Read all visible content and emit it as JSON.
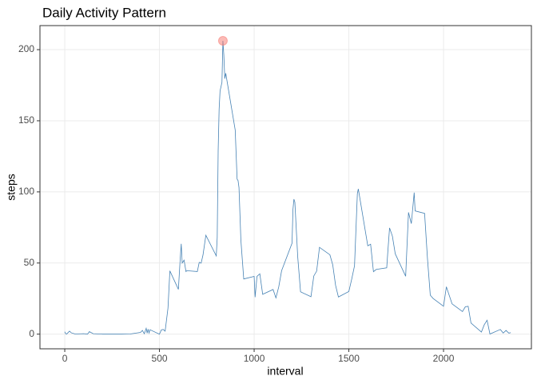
{
  "chart_data": {
    "type": "line",
    "title": "Daily Activity Pattern",
    "xlabel": "interval",
    "ylabel": "steps",
    "x": [
      0,
      5,
      10,
      25,
      35,
      55,
      100,
      120,
      130,
      150,
      200,
      245,
      300,
      345,
      400,
      410,
      420,
      430,
      435,
      440,
      445,
      450,
      500,
      510,
      520,
      530,
      545,
      555,
      600,
      610,
      615,
      620,
      630,
      640,
      645,
      700,
      710,
      720,
      730,
      745,
      800,
      805,
      810,
      815,
      820,
      830,
      835,
      840,
      845,
      850,
      900,
      910,
      915,
      920,
      930,
      945,
      1000,
      1005,
      1015,
      1030,
      1045,
      1100,
      1115,
      1130,
      1145,
      1200,
      1205,
      1210,
      1215,
      1230,
      1245,
      1300,
      1315,
      1330,
      1345,
      1400,
      1415,
      1430,
      1445,
      1500,
      1515,
      1530,
      1545,
      1550,
      1600,
      1615,
      1630,
      1645,
      1700,
      1705,
      1715,
      1730,
      1745,
      1800,
      1815,
      1830,
      1845,
      1850,
      1900,
      1915,
      1930,
      1945,
      2000,
      2015,
      2030,
      2045,
      2100,
      2115,
      2130,
      2145,
      2200,
      2215,
      2230,
      2245,
      2300,
      2315,
      2330,
      2345,
      2355
    ],
    "series": [
      {
        "name": "steps",
        "color": "#4682b4",
        "values": [
          1.7,
          0.3,
          0.1,
          2.1,
          0.9,
          0.1,
          0.3,
          0,
          1.8,
          0.3,
          0,
          0,
          0,
          0.1,
          1.2,
          2.6,
          0.3,
          4.1,
          0.7,
          3.5,
          0.8,
          3.1,
          0,
          3.0,
          3.3,
          2.1,
          18.3,
          44.5,
          31.5,
          53.8,
          63.5,
          50,
          52,
          44,
          44.6,
          44,
          50.5,
          49.9,
          55.7,
          69.5,
          55,
          68,
          129,
          158,
          171,
          177,
          206.2,
          195.9,
          179.6,
          183.4,
          143.5,
          109,
          108,
          103,
          66,
          38.8,
          40.6,
          26,
          40.6,
          42.4,
          28,
          31.4,
          25.5,
          33.3,
          44.6,
          63.9,
          87.7,
          94.9,
          92.8,
          54.5,
          29.8,
          26.3,
          40.9,
          44.3,
          61,
          55.8,
          48.7,
          34.3,
          26.1,
          30,
          38.6,
          48.1,
          98.7,
          102.1,
          62.1,
          63.2,
          43.9,
          45.5,
          46.6,
          56.3,
          74.7,
          68.9,
          56.5,
          40.7,
          85.6,
          77.7,
          99.5,
          86.6,
          84.9,
          53.5,
          27.4,
          25.1,
          19.6,
          33.3,
          27.3,
          21.3,
          15.9,
          19.2,
          19.6,
          7.8,
          1.5,
          6.6,
          9.8,
          0.1,
          3.3,
          0.8,
          2.6,
          0.7,
          1.1
        ]
      }
    ],
    "highlight": {
      "x": 835,
      "y": 206.2,
      "color": "#f8766d"
    },
    "xlim": [
      -131,
      2464
    ],
    "ylim": [
      -10.3,
      216.9
    ],
    "xticks": [
      0,
      500,
      1000,
      1500,
      2000
    ],
    "yticks": [
      0,
      50,
      100,
      150,
      200
    ],
    "grid": true
  }
}
